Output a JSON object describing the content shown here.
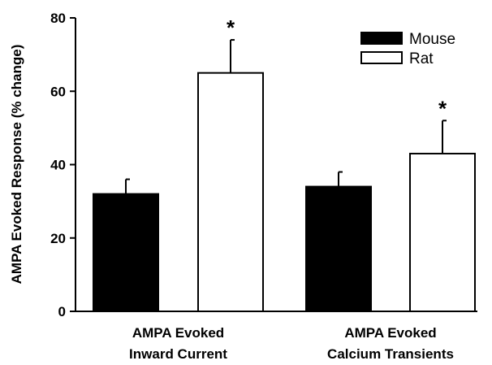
{
  "chart_data": {
    "type": "bar",
    "title": "",
    "ylabel": "AMPA Evoked Response (% change)",
    "xlabel": "",
    "ylim": [
      0,
      80
    ],
    "yticks": [
      0,
      20,
      40,
      60,
      80
    ],
    "categories": [
      [
        "AMPA Evoked",
        "Inward Current"
      ],
      [
        "AMPA Evoked",
        "Calcium Transients"
      ]
    ],
    "series": [
      {
        "name": "Mouse",
        "fill": "#000000",
        "values": [
          32,
          34
        ],
        "errors": [
          4,
          4
        ],
        "significant": [
          false,
          false
        ]
      },
      {
        "name": "Rat",
        "fill": "#ffffff",
        "values": [
          65,
          43
        ],
        "errors": [
          9,
          9
        ],
        "significant": [
          true,
          true
        ]
      }
    ],
    "significance_marker": "*",
    "legend_position": "top-right",
    "grid": false
  }
}
